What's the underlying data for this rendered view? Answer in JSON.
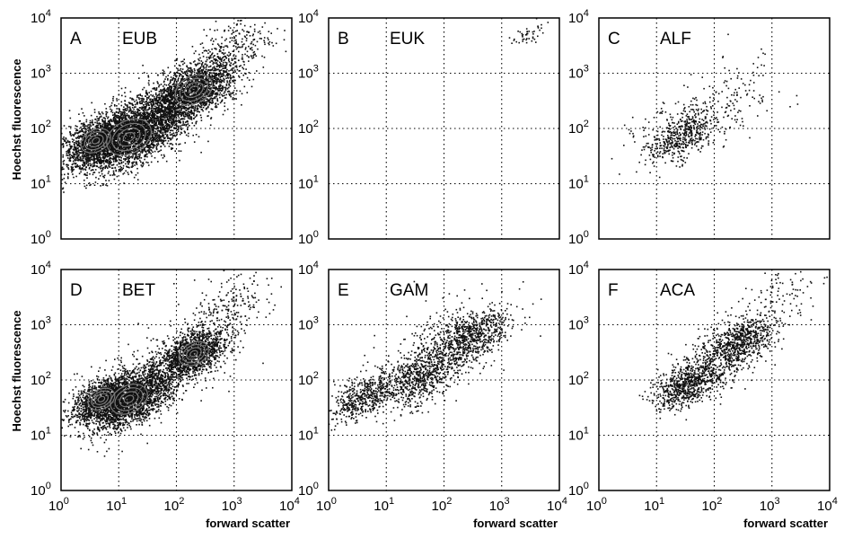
{
  "chart_data": [
    {
      "type": "scatter",
      "letter": "A",
      "name": "EUB",
      "xscale": "log",
      "yscale": "log",
      "xlim": [
        1,
        10000
      ],
      "ylim": [
        1,
        10000
      ],
      "grid": true,
      "contours": true,
      "xlabel": "",
      "ylabel": "Hoechst fluorescence",
      "populations": [
        {
          "center_x": 15,
          "center_y": 70,
          "count": 2600,
          "spread": 0.3
        },
        {
          "center_x": 4,
          "center_y": 60,
          "count": 1200,
          "spread": 0.2
        },
        {
          "center_x": 200,
          "center_y": 500,
          "count": 1700,
          "spread": 0.25
        },
        {
          "center_x": 60,
          "center_y": 200,
          "count": 900,
          "spread": 0.3
        },
        {
          "center_x": 1000,
          "center_y": 3000,
          "count": 250,
          "spread": 0.25
        }
      ]
    },
    {
      "type": "scatter",
      "letter": "B",
      "name": "EUK",
      "xscale": "log",
      "yscale": "log",
      "xlim": [
        1,
        10000
      ],
      "ylim": [
        1,
        10000
      ],
      "grid": true,
      "contours": false,
      "xlabel": "",
      "ylabel": "",
      "populations": [
        {
          "center_x": 3000,
          "center_y": 5000,
          "count": 45,
          "spread": 0.1
        }
      ]
    },
    {
      "type": "scatter",
      "letter": "C",
      "name": "ALF",
      "xscale": "log",
      "yscale": "log",
      "xlim": [
        1,
        10000
      ],
      "ylim": [
        1,
        10000
      ],
      "grid": true,
      "contours": false,
      "xlabel": "",
      "ylabel": "",
      "populations": [
        {
          "center_x": 30,
          "center_y": 70,
          "count": 420,
          "spread": 0.2
        },
        {
          "center_x": 150,
          "center_y": 300,
          "count": 160,
          "spread": 0.35
        },
        {
          "center_x": 20,
          "center_y": 100,
          "count": 120,
          "spread": 0.3
        }
      ]
    },
    {
      "type": "scatter",
      "letter": "D",
      "name": "BET",
      "xscale": "log",
      "yscale": "log",
      "xlim": [
        1,
        10000
      ],
      "ylim": [
        1,
        10000
      ],
      "grid": true,
      "contours": true,
      "xlabel": "forward scatter",
      "ylabel": "Hoechst fluorescence",
      "populations": [
        {
          "center_x": 15,
          "center_y": 45,
          "count": 2200,
          "spread": 0.25
        },
        {
          "center_x": 5,
          "center_y": 45,
          "count": 900,
          "spread": 0.18
        },
        {
          "center_x": 200,
          "center_y": 300,
          "count": 1300,
          "spread": 0.2
        },
        {
          "center_x": 60,
          "center_y": 150,
          "count": 500,
          "spread": 0.35
        },
        {
          "center_x": 700,
          "center_y": 2000,
          "count": 220,
          "spread": 0.3
        }
      ]
    },
    {
      "type": "scatter",
      "letter": "E",
      "name": "GAM",
      "xscale": "log",
      "yscale": "log",
      "xlim": [
        1,
        10000
      ],
      "ylim": [
        1,
        10000
      ],
      "grid": true,
      "contours": false,
      "xlabel": "forward scatter",
      "ylabel": "",
      "populations": [
        {
          "center_x": 4,
          "center_y": 50,
          "count": 500,
          "spread": 0.2
        },
        {
          "center_x": 40,
          "center_y": 120,
          "count": 700,
          "spread": 0.25
        },
        {
          "center_x": 300,
          "center_y": 600,
          "count": 650,
          "spread": 0.22
        },
        {
          "center_x": 100,
          "center_y": 400,
          "count": 300,
          "spread": 0.4
        }
      ]
    },
    {
      "type": "scatter",
      "letter": "F",
      "name": "ACA",
      "xscale": "log",
      "yscale": "log",
      "xlim": [
        1,
        10000
      ],
      "ylim": [
        1,
        10000
      ],
      "grid": true,
      "contours": false,
      "xlabel": "forward scatter",
      "ylabel": "",
      "populations": [
        {
          "center_x": 35,
          "center_y": 80,
          "count": 650,
          "spread": 0.2
        },
        {
          "center_x": 300,
          "center_y": 500,
          "count": 650,
          "spread": 0.2
        },
        {
          "center_x": 100,
          "center_y": 200,
          "count": 350,
          "spread": 0.3
        },
        {
          "center_x": 1000,
          "center_y": 3000,
          "count": 120,
          "spread": 0.3
        }
      ]
    }
  ],
  "tick_base": "10",
  "tick_exponents": [
    "0",
    "1",
    "2",
    "3",
    "4"
  ],
  "colors": {
    "dots": "#111111",
    "contour": "#7a7a7a",
    "frame": "#000000",
    "grid": "#000000"
  }
}
